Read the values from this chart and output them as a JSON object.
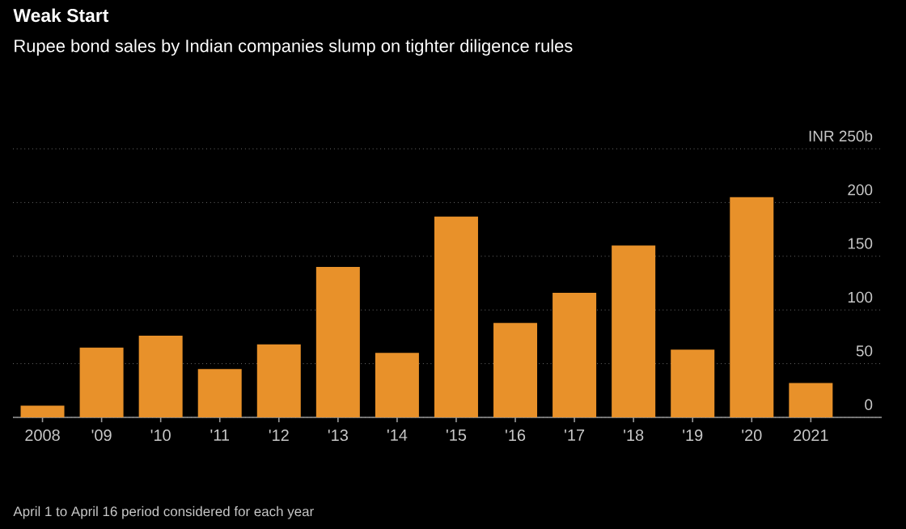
{
  "chart_data": {
    "type": "bar",
    "title": "Weak Start",
    "subtitle": "Rupee bond sales by Indian companies slump on tighter diligence rules",
    "categories": [
      "2008",
      "'09",
      "'10",
      "'11",
      "'12",
      "'13",
      "'14",
      "'15",
      "'16",
      "'17",
      "'18",
      "'19",
      "'20",
      "2021"
    ],
    "values": [
      11,
      65,
      76,
      45,
      68,
      140,
      60,
      187,
      88,
      116,
      160,
      63,
      205,
      32
    ],
    "color": "#e8912a",
    "ylim": [
      0,
      250
    ],
    "yticks": [
      0,
      50,
      100,
      150,
      200,
      {
        "value": 250,
        "label": "INR 250b"
      }
    ],
    "grid": "y",
    "annotations": [
      "April 1 to April 16 period considered for each year"
    ]
  }
}
